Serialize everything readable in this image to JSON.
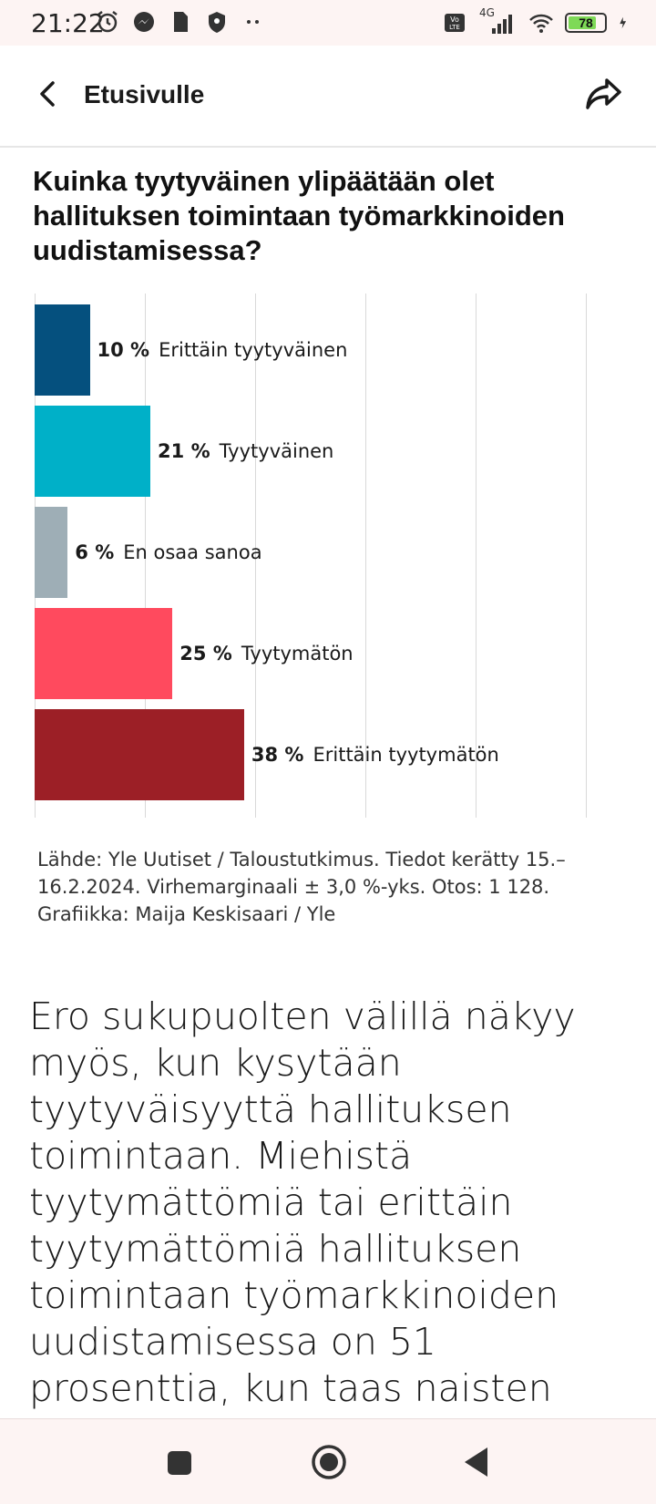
{
  "status_bar": {
    "time": "21:22",
    "network": "4G",
    "battery": "78"
  },
  "header": {
    "back_label": "Etusivulle"
  },
  "article": {
    "question": "Kuinka tyytyväinen ylipäätään olet hallituksen toimintaan työmarkkinoiden uudistamisessa?",
    "source": "Lähde: Yle Uutiset / Taloustutkimus. Tiedot kerätty 15.–16.2.2024. Virhemarginaali ± 3,0 %-yks. Otos: 1 128. Grafiikka: Maija Keskisaari / Yle",
    "body": "Ero sukupuolten välillä näkyy myös, kun kysytään tyytyväisyyttä hallituksen toimintaan. Miehistä tyytymättömiä tai erittäin tyytymättömiä hallituksen toimintaan työmarkkinoiden uudistamisessa on 51 prosenttia, kun taas naisten keskuudessa"
  },
  "chart_data": {
    "type": "bar",
    "orientation": "horizontal",
    "categories": [
      "Erittäin tyytyväinen",
      "Tyytyväinen",
      "En osaa sanoa",
      "Tyytymätön",
      "Erittäin tyytymätön"
    ],
    "values": [
      10,
      21,
      6,
      25,
      38
    ],
    "value_labels": [
      "10 %",
      "21 %",
      "6 %",
      "25 %",
      "38 %"
    ],
    "colors": [
      "#05507e",
      "#00b0c8",
      "#9eaeb6",
      "#ff4a5e",
      "#9c1f26"
    ],
    "xlim": [
      0,
      100
    ],
    "grid": true
  },
  "colors": {
    "status_bg": "#fdf4f3",
    "text": "#1a1a1a"
  }
}
